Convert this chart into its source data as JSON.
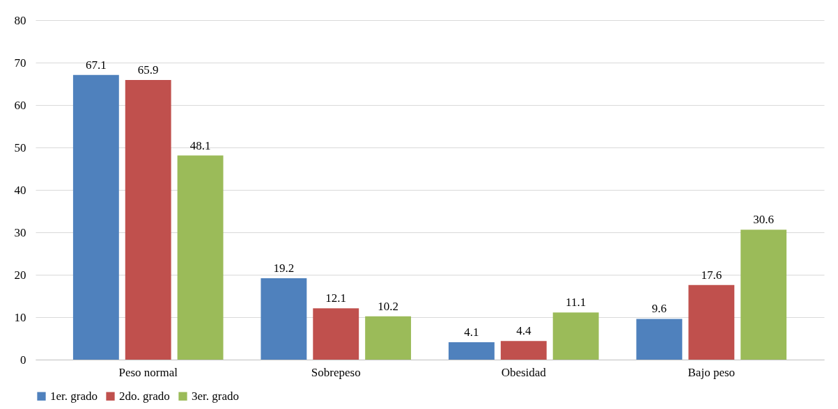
{
  "chart_data": {
    "type": "bar",
    "categories": [
      "Peso normal",
      "Sobrepeso",
      "Obesidad",
      "Bajo peso"
    ],
    "series": [
      {
        "name": "1er. grado",
        "color": "#4f81bd",
        "values": [
          67.1,
          19.2,
          4.1,
          9.6
        ]
      },
      {
        "name": "2do. grado",
        "color": "#c0504d",
        "values": [
          65.9,
          12.1,
          4.4,
          17.6
        ]
      },
      {
        "name": "3er. grado",
        "color": "#9bbb59",
        "values": [
          48.1,
          10.2,
          11.1,
          30.6
        ]
      }
    ],
    "ylim": [
      0,
      80
    ],
    "yticks": [
      0,
      10,
      20,
      30,
      40,
      50,
      60,
      70,
      80
    ],
    "grid": "y",
    "legend": "bottom",
    "data_labels": true
  }
}
